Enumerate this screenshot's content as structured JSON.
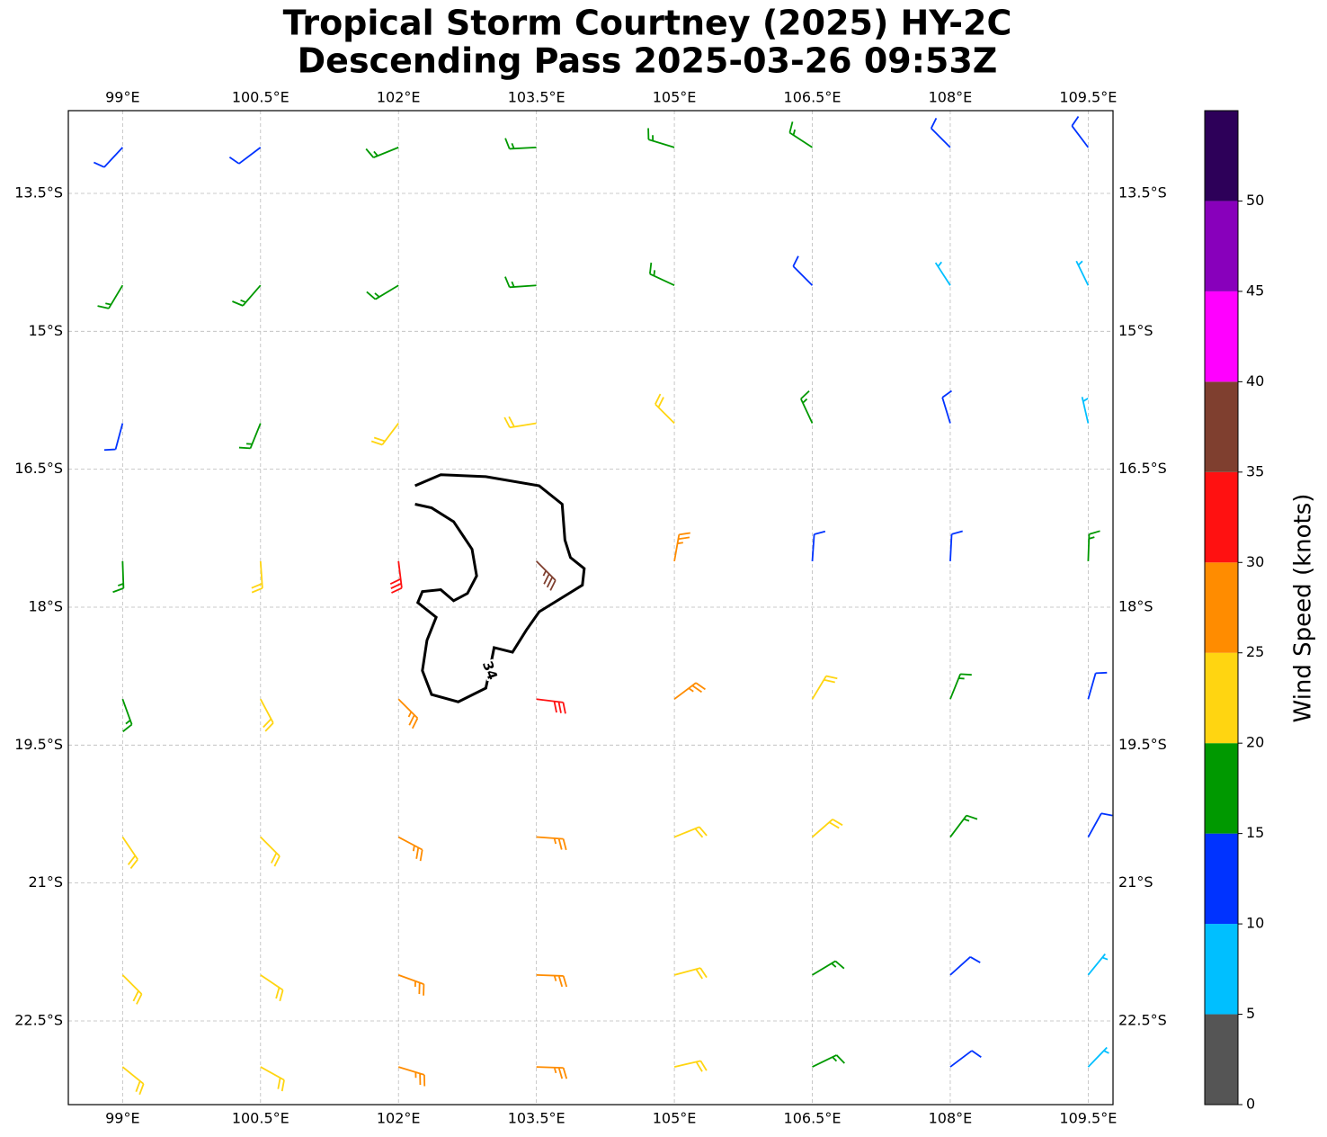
{
  "chart_data": {
    "type": "wind-barb-map",
    "title": "Tropical Storm Courtney (2025) HY-2C",
    "subtitle": "Descending Pass 2025-03-26 09:53Z",
    "xlim": [
      98.41,
      109.77
    ],
    "ylim": [
      -23.41,
      -12.6
    ],
    "xticks": [
      {
        "value": 99,
        "label": "99°E"
      },
      {
        "value": 100.5,
        "label": "100.5°E"
      },
      {
        "value": 102,
        "label": "102°E"
      },
      {
        "value": 103.5,
        "label": "103.5°E"
      },
      {
        "value": 105,
        "label": "105°E"
      },
      {
        "value": 106.5,
        "label": "106.5°E"
      },
      {
        "value": 108,
        "label": "108°E"
      },
      {
        "value": 109.5,
        "label": "109.5°E"
      }
    ],
    "yticks": [
      {
        "value": -13.5,
        "label": "13.5°S"
      },
      {
        "value": -15,
        "label": "15°S"
      },
      {
        "value": -16.5,
        "label": "16.5°S"
      },
      {
        "value": -18,
        "label": "18°S"
      },
      {
        "value": -19.5,
        "label": "19.5°S"
      },
      {
        "value": -21,
        "label": "21°S"
      },
      {
        "value": -22.5,
        "label": "22.5°S"
      }
    ],
    "grid": true,
    "barbs": {
      "lon": [
        99,
        100.5,
        102,
        103.5,
        105,
        106.5,
        108,
        109.5,
        99,
        100.5,
        102,
        103.5,
        105,
        106.5,
        108,
        109.5,
        99,
        100.5,
        102,
        103.5,
        105,
        106.5,
        108,
        109.5,
        99,
        100.5,
        102,
        103.5,
        105,
        106.5,
        108,
        109.5,
        99,
        100.5,
        102,
        103.5,
        105,
        106.5,
        108,
        109.5,
        99,
        100.5,
        102,
        103.5,
        105,
        106.5,
        108,
        109.5,
        99,
        100.5,
        102,
        103.5,
        105,
        106.5,
        108,
        109.5,
        99,
        100.5,
        102,
        103.5,
        105,
        106.5,
        108,
        109.5
      ],
      "lat": [
        -13,
        -13,
        -13,
        -13,
        -13,
        -13,
        -13,
        -13,
        -14.5,
        -14.5,
        -14.5,
        -14.5,
        -14.5,
        -14.5,
        -14.5,
        -14.5,
        -16,
        -16,
        -16,
        -16,
        -16,
        -16,
        -16,
        -16,
        -17.5,
        -17.5,
        -17.5,
        -17.5,
        -17.5,
        -17.5,
        -17.5,
        -17.5,
        -19,
        -19,
        -19,
        -19,
        -19,
        -19,
        -19,
        -19,
        -20.5,
        -20.5,
        -20.5,
        -20.5,
        -20.5,
        -20.5,
        -20.5,
        -20.5,
        -22,
        -22,
        -22,
        -22,
        -22,
        -22,
        -22,
        -22,
        -23,
        -23,
        -23,
        -23,
        -23,
        -23,
        -23,
        -23
      ],
      "speed": [
        12,
        12,
        17,
        18,
        17,
        16,
        13,
        12,
        16,
        17,
        19,
        19,
        18,
        14,
        9,
        6,
        13,
        17,
        21,
        23,
        22,
        17,
        12,
        9,
        16,
        21,
        31,
        37,
        26,
        14,
        12,
        15,
        17,
        23,
        28,
        33,
        26,
        21,
        17,
        13,
        21,
        24,
        27,
        27,
        24,
        21,
        17,
        12,
        22,
        24,
        26,
        26,
        24,
        18,
        13,
        9,
        22,
        23,
        25,
        26,
        23,
        17,
        12,
        9
      ],
      "direction": [
        223,
        233,
        248,
        267,
        287,
        303,
        315,
        323,
        211,
        221,
        239,
        266,
        295,
        315,
        327,
        334,
        195,
        202,
        217,
        261,
        315,
        335,
        343,
        347,
        178,
        176,
        173,
        135,
        10,
        4,
        3,
        2,
        160,
        152,
        135,
        97,
        53,
        31,
        22,
        16,
        146,
        135,
        118,
        94,
        68,
        49,
        37,
        29,
        135,
        124,
        110,
        92,
        75,
        59,
        48,
        39,
        129,
        119,
        107,
        92,
        77,
        64,
        53,
        44
      ]
    },
    "contour": {
      "label": "34",
      "lon": [
        102.18,
        102.46,
        102.95,
        103.53,
        103.78,
        103.81,
        103.87,
        104.02,
        104.0,
        103.53,
        103.39,
        103.24,
        103.04,
        102.99,
        102.95,
        102.65,
        102.36,
        102.26,
        102.31,
        102.41,
        102.21,
        102.26,
        102.46,
        102.6,
        102.75,
        102.85,
        102.8,
        102.7,
        102.6,
        102.36,
        102.18
      ],
      "lat": [
        -16.68,
        -16.56,
        -16.58,
        -16.68,
        -16.88,
        -17.27,
        -17.46,
        -17.58,
        -17.76,
        -18.05,
        -18.25,
        -18.49,
        -18.44,
        -18.69,
        -18.88,
        -19.03,
        -18.95,
        -18.69,
        -18.36,
        -18.11,
        -17.95,
        -17.83,
        -17.81,
        -17.93,
        -17.85,
        -17.66,
        -17.37,
        -17.22,
        -17.07,
        -16.92,
        -16.88
      ]
    },
    "colorbar": {
      "label": "Wind Speed (knots)",
      "bounds": [
        0,
        5,
        10,
        15,
        20,
        25,
        30,
        35,
        40,
        45,
        50,
        55
      ],
      "colors": [
        "#555555",
        "#00bfff",
        "#0033ff",
        "#009900",
        "#ffd511",
        "#ff8c00",
        "#ff1111",
        "#7f3f2f",
        "#ff00ff",
        "#8800bb",
        "#2d0059"
      ],
      "ticks": [
        0,
        5,
        10,
        15,
        20,
        25,
        30,
        35,
        40,
        45,
        50
      ]
    }
  }
}
